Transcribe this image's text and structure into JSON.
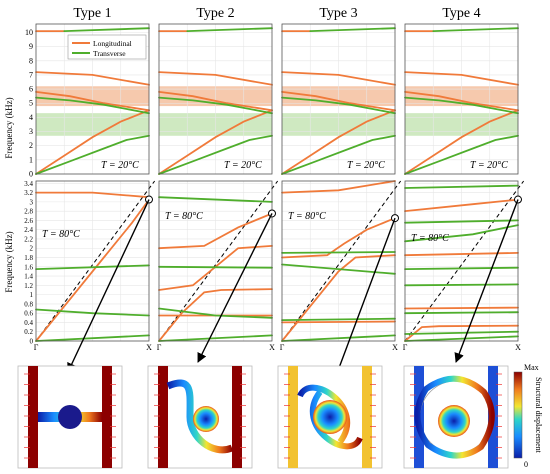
{
  "colors": {
    "longitudinal": "#f07a3a",
    "transverse": "#4fae2c",
    "band_orange": "#f6c9ad",
    "band_green": "#cfe9c1",
    "grid": "#e6e6e6",
    "frame": "#555555",
    "dashed": "#000000",
    "cmap_low": "#0a1ea8",
    "cmap_high": "#8c0000"
  },
  "legend": {
    "longitudinal": "Longitudinal",
    "transverse": "Transverse"
  },
  "column_titles": [
    "Type 1",
    "Type 2",
    "Type 3",
    "Type 4"
  ],
  "top_row": {
    "ylabel": "Frequency (kHz)",
    "yticks": [
      "0",
      "1",
      "2",
      "3",
      "4",
      "5",
      "6",
      "7",
      "8",
      "9",
      "10"
    ],
    "temperature": "T = 20°C",
    "bandgaps": [
      {
        "from": 4.8,
        "to": 6.2,
        "color": "band_orange"
      },
      {
        "from": 2.7,
        "to": 4.3,
        "color": "band_green"
      }
    ]
  },
  "bottom_row": {
    "ylabel": "Frequency (kHz)",
    "yticks": [
      "0",
      "0.2",
      "0.4",
      "0.6",
      "0.8",
      "1",
      "1.2",
      "1.4",
      "1.6",
      "1.8",
      "2",
      "2.2",
      "2.4",
      "2.6",
      "2.8",
      "3",
      "3.2",
      "3.4"
    ],
    "xticks": [
      "Γ",
      "X"
    ],
    "temperature": "T = 80°C"
  },
  "colorbar": {
    "max_label": "Max",
    "min_label": "0",
    "title": "Structural displacement"
  },
  "chart_data": [
    {
      "type": "line",
      "panel": "top",
      "temperature_C": 20,
      "x": [
        0,
        1
      ],
      "ylim": [
        0,
        10.6
      ],
      "series": [
        {
          "name": "Longitudinal",
          "branches": [
            [
              [
                0,
                0
              ],
              [
                0.25,
                1.3
              ],
              [
                0.5,
                2.6
              ],
              [
                0.75,
                3.7
              ],
              [
                1,
                4.5
              ]
            ],
            [
              [
                0,
                5.8
              ],
              [
                0.3,
                5.5
              ],
              [
                0.6,
                5.0
              ],
              [
                1,
                4.5
              ]
            ],
            [
              [
                0,
                7.2
              ],
              [
                0.5,
                7.0
              ],
              [
                1,
                6.3
              ]
            ],
            [
              [
                0,
                10.1
              ],
              [
                0.25,
                10.1
              ]
            ]
          ]
        },
        {
          "name": "Transverse",
          "branches": [
            [
              [
                0,
                0
              ],
              [
                0.3,
                0.9
              ],
              [
                0.6,
                1.8
              ],
              [
                0.8,
                2.4
              ],
              [
                1,
                2.7
              ]
            ],
            [
              [
                0,
                5.4
              ],
              [
                0.3,
                5.2
              ],
              [
                0.6,
                4.9
              ],
              [
                1,
                4.3
              ]
            ],
            [
              [
                0.25,
                10.1
              ],
              [
                1,
                10.3
              ]
            ]
          ]
        }
      ]
    },
    {
      "type": "line",
      "panel": "bottom",
      "type_label": "Type 1",
      "temperature_C": 80,
      "ylim": [
        0,
        3.45
      ],
      "series": [
        {
          "name": "Longitudinal",
          "branches": [
            [
              [
                0,
                0
              ],
              [
                0.3,
                0.9
              ],
              [
                0.6,
                1.8
              ],
              [
                0.85,
                2.55
              ],
              [
                1,
                3.05
              ]
            ],
            [
              [
                0,
                3.2
              ],
              [
                0.5,
                3.2
              ],
              [
                1,
                3.1
              ]
            ]
          ]
        },
        {
          "name": "Transverse",
          "branches": [
            [
              [
                0,
                0
              ],
              [
                1,
                0.12
              ]
            ],
            [
              [
                0,
                0.68
              ],
              [
                0.5,
                0.6
              ],
              [
                1,
                0.55
              ]
            ],
            [
              [
                0,
                1.55
              ],
              [
                1,
                1.63
              ]
            ]
          ]
        }
      ]
    },
    {
      "type": "line",
      "panel": "bottom",
      "type_label": "Type 2",
      "temperature_C": 80,
      "ylim": [
        0,
        3.45
      ],
      "series": [
        {
          "name": "Longitudinal",
          "branches": [
            [
              [
                0,
                0
              ],
              [
                0.2,
                0.6
              ],
              [
                0.4,
                1.05
              ],
              [
                0.55,
                1.1
              ],
              [
                1,
                1.12
              ]
            ],
            [
              [
                0,
                1.1
              ],
              [
                0.3,
                1.2
              ],
              [
                0.5,
                1.6
              ],
              [
                0.7,
                2.0
              ],
              [
                1,
                2.05
              ]
            ],
            [
              [
                0,
                2.0
              ],
              [
                0.4,
                2.05
              ],
              [
                0.7,
                2.45
              ],
              [
                1,
                2.75
              ]
            ],
            [
              [
                0,
                0.55
              ],
              [
                1,
                0.55
              ]
            ]
          ]
        },
        {
          "name": "Transverse",
          "branches": [
            [
              [
                0,
                0
              ],
              [
                1,
                0.12
              ]
            ],
            [
              [
                0,
                0.7
              ],
              [
                0.5,
                0.55
              ],
              [
                1,
                0.5
              ]
            ],
            [
              [
                0,
                1.6
              ],
              [
                1,
                1.58
              ]
            ],
            [
              [
                0,
                3.1
              ],
              [
                1,
                3.0
              ]
            ]
          ]
        }
      ]
    },
    {
      "type": "line",
      "panel": "bottom",
      "type_label": "Type 3",
      "temperature_C": 80,
      "ylim": [
        0,
        3.45
      ],
      "series": [
        {
          "name": "Longitudinal",
          "branches": [
            [
              [
                0,
                0
              ],
              [
                0.3,
                0.9
              ],
              [
                0.5,
                1.5
              ],
              [
                0.65,
                1.8
              ],
              [
                1,
                1.85
              ]
            ],
            [
              [
                0,
                1.8
              ],
              [
                0.4,
                1.85
              ],
              [
                0.55,
                2.1
              ],
              [
                0.75,
                2.4
              ],
              [
                1,
                2.65
              ]
            ],
            [
              [
                0,
                3.2
              ],
              [
                0.5,
                3.25
              ],
              [
                1,
                3.45
              ]
            ],
            [
              [
                0,
                0.4
              ],
              [
                1,
                0.42
              ]
            ]
          ]
        },
        {
          "name": "Transverse",
          "branches": [
            [
              [
                0,
                0
              ],
              [
                1,
                0.12
              ]
            ],
            [
              [
                0,
                0.45
              ],
              [
                1,
                0.48
              ]
            ],
            [
              [
                0,
                1.65
              ],
              [
                0.5,
                1.55
              ],
              [
                1,
                1.45
              ]
            ],
            [
              [
                0,
                1.9
              ],
              [
                1,
                1.92
              ]
            ]
          ]
        }
      ]
    },
    {
      "type": "line",
      "panel": "bottom",
      "type_label": "Type 4",
      "temperature_C": 80,
      "ylim": [
        0,
        3.45
      ],
      "series": [
        {
          "name": "Longitudinal",
          "branches": [
            [
              [
                0,
                0
              ],
              [
                0.15,
                0.3
              ],
              [
                0.3,
                0.32
              ],
              [
                1,
                0.33
              ]
            ],
            [
              [
                0,
                0.7
              ],
              [
                1,
                0.72
              ]
            ],
            [
              [
                0,
                1.85
              ],
              [
                1,
                1.9
              ]
            ],
            [
              [
                0,
                2.8
              ],
              [
                0.6,
                2.95
              ],
              [
                1,
                3.05
              ]
            ]
          ]
        },
        {
          "name": "Transverse",
          "branches": [
            [
              [
                0,
                0
              ],
              [
                1,
                0.1
              ]
            ],
            [
              [
                0,
                0.15
              ],
              [
                1,
                0.2
              ]
            ],
            [
              [
                0,
                0.6
              ],
              [
                1,
                0.62
              ]
            ],
            [
              [
                0,
                1.2
              ],
              [
                1,
                1.22
              ]
            ],
            [
              [
                0,
                1.55
              ],
              [
                1,
                1.58
              ]
            ],
            [
              [
                0,
                2.15
              ],
              [
                0.6,
                2.3
              ],
              [
                1,
                2.5
              ]
            ],
            [
              [
                0,
                2.55
              ],
              [
                1,
                2.6
              ]
            ],
            [
              [
                0,
                3.3
              ],
              [
                1,
                3.35
              ]
            ]
          ]
        }
      ]
    }
  ]
}
